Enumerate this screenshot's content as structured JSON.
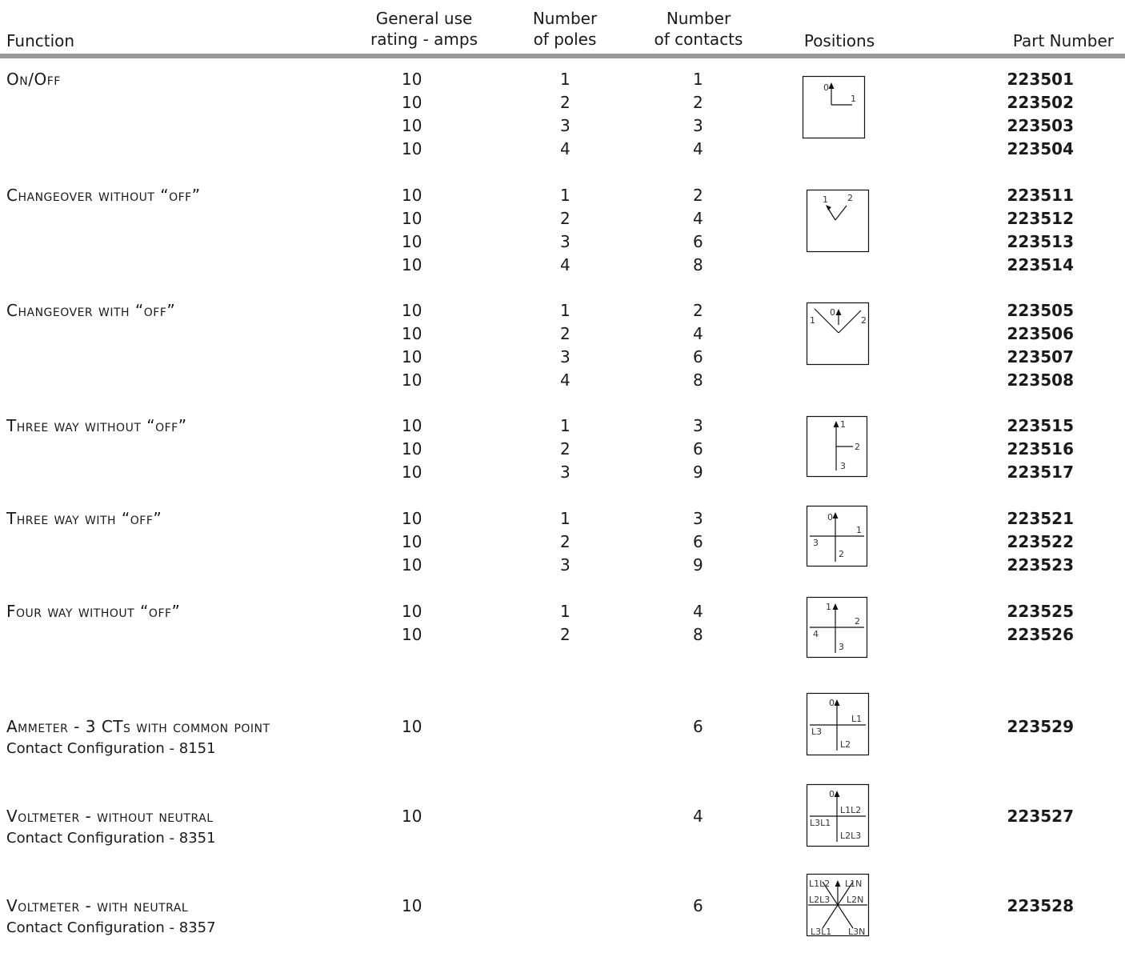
{
  "headers": {
    "function": "Function",
    "amps_line1": "General use",
    "amps_line2": "rating - amps",
    "poles_line1": "Number",
    "poles_line2": "of poles",
    "contacts_line1": "Number",
    "contacts_line2": "of contacts",
    "positions": "Positions",
    "part": "Part Number"
  },
  "rows": [
    {
      "function": "On/Off",
      "amps": [
        "10",
        "10",
        "10",
        "10"
      ],
      "poles": [
        "1",
        "2",
        "3",
        "4"
      ],
      "contacts": [
        "1",
        "2",
        "3",
        "4"
      ],
      "parts": [
        "223501",
        "223502",
        "223503",
        "223504"
      ],
      "labels": [
        "0",
        "1"
      ]
    },
    {
      "function": "Changeover without “off”",
      "amps": [
        "10",
        "10",
        "10",
        "10"
      ],
      "poles": [
        "1",
        "2",
        "3",
        "4"
      ],
      "contacts": [
        "2",
        "4",
        "6",
        "8"
      ],
      "parts": [
        "223511",
        "223512",
        "223513",
        "223514"
      ],
      "labels": [
        "1",
        "2"
      ]
    },
    {
      "function": "Changeover with “off”",
      "amps": [
        "10",
        "10",
        "10",
        "10"
      ],
      "poles": [
        "1",
        "2",
        "3",
        "4"
      ],
      "contacts": [
        "2",
        "4",
        "6",
        "8"
      ],
      "parts": [
        "223505",
        "223506",
        "223507",
        "223508"
      ],
      "labels": [
        "1",
        "0",
        "2"
      ]
    },
    {
      "function": "Three way without “off”",
      "amps": [
        "10",
        "10",
        "10"
      ],
      "poles": [
        "1",
        "2",
        "3"
      ],
      "contacts": [
        "3",
        "6",
        "9"
      ],
      "parts": [
        "223515",
        "223516",
        "223517"
      ],
      "labels": [
        "1",
        "2",
        "3"
      ]
    },
    {
      "function": "Three way with “off”",
      "amps": [
        "10",
        "10",
        "10"
      ],
      "poles": [
        "1",
        "2",
        "3"
      ],
      "contacts": [
        "3",
        "6",
        "9"
      ],
      "parts": [
        "223521",
        "223522",
        "223523"
      ],
      "labels": [
        "0",
        "1",
        "3",
        "2"
      ]
    },
    {
      "function": "Four way without “off”",
      "amps": [
        "10",
        "10"
      ],
      "poles": [
        "1",
        "2"
      ],
      "contacts": [
        "4",
        "8"
      ],
      "parts": [
        "223525",
        "223526"
      ],
      "labels": [
        "1",
        "2",
        "4",
        "3"
      ]
    },
    {
      "function": "Ammeter - 3 CTs with common point",
      "sub": "Contact Configuration - 8151",
      "amps": [
        "10"
      ],
      "poles": [],
      "contacts": [
        "6"
      ],
      "parts": [
        "223529"
      ],
      "labels": [
        "0",
        "L1",
        "L3",
        "L2"
      ]
    },
    {
      "function": "Voltmeter - without neutral",
      "sub": "Contact Configuration - 8351",
      "amps": [
        "10"
      ],
      "poles": [],
      "contacts": [
        "4"
      ],
      "parts": [
        "223527"
      ],
      "labels": [
        "0",
        "L1L2",
        "L3L1",
        "L2L3"
      ]
    },
    {
      "function": "Voltmeter - with neutral",
      "sub": "Contact Configuration - 8357",
      "amps": [
        "10"
      ],
      "poles": [],
      "contacts": [
        "6"
      ],
      "parts": [
        "223528"
      ],
      "labels": [
        "L1L2",
        "L1N",
        "L2L3",
        "L2N",
        "L3L1",
        "L3N"
      ]
    }
  ]
}
